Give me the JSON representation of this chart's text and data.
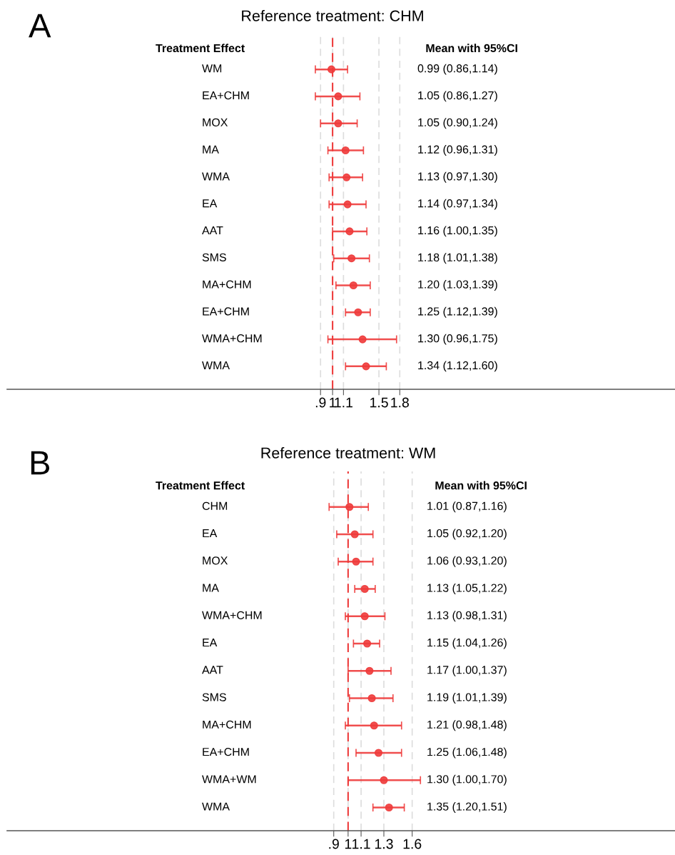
{
  "chart_data": [
    {
      "type": "scatter",
      "orientation": "horizontal",
      "title": "Reference treatment: CHM",
      "annotations": [
        "A",
        "Treatment Effect",
        "Mean with 95%CI",
        "0.99 (0.86,1.14)",
        "1.05 (0.86,1.27)",
        "1.05 (0.90,1.24)",
        "1.12 (0.96,1.31)",
        "1.13 (0.97,1.30)",
        "1.14 (0.97,1.34)",
        "1.16 (1.00,1.35)",
        "1.18 (1.01,1.38)",
        "1.20 (1.03,1.39)",
        "1.25 (1.12,1.39)",
        "1.30 (0.96,1.75)",
        "1.34 (1.12,1.60)"
      ],
      "categories": [
        "WM",
        "EA+CHM",
        "MOX",
        "MA",
        "WMA",
        "EA",
        "AAT",
        "SMS",
        "MA+CHM",
        "EA+CHM",
        "WMA+CHM",
        "WMA"
      ],
      "series": [
        {
          "color": "#ee3b3b",
          "values": [
            0.99,
            1.05,
            1.05,
            1.12,
            1.13,
            1.14,
            1.16,
            1.18,
            1.2,
            1.25,
            1.3,
            1.34
          ],
          "errors": [
            [
              0.86,
              1.14
            ],
            [
              0.86,
              1.27
            ],
            [
              0.9,
              1.24
            ],
            [
              0.96,
              1.31
            ],
            [
              0.97,
              1.3
            ],
            [
              0.97,
              1.34
            ],
            [
              1.0,
              1.35
            ],
            [
              1.01,
              1.38
            ],
            [
              1.03,
              1.39
            ],
            [
              1.12,
              1.39
            ],
            [
              0.96,
              1.75
            ],
            [
              1.12,
              1.6
            ]
          ]
        }
      ],
      "log": "x",
      "xlim": [
        0.058,
        20
      ],
      "xticks": [
        {
          "value": 0.9,
          "label": ".9"
        },
        1,
        1.1,
        1.5,
        1.8
      ],
      "grid": "x",
      "marker": "circle",
      "ref_lines": [
        {
          "axis": "x",
          "value": 1,
          "color": "#ee3b3b",
          "line_style": "dashed"
        }
      ]
    },
    {
      "type": "scatter",
      "orientation": "horizontal",
      "title": "Reference treatment: WM",
      "annotations": [
        "B",
        "Treatment Effect",
        "Mean with 95%CI",
        "1.01 (0.87,1.16)",
        "1.05 (0.92,1.20)",
        "1.06 (0.93,1.20)",
        "1.13 (1.05,1.22)",
        "1.13 (0.98,1.31)",
        "1.15 (1.04,1.26)",
        "1.17 (1.00,1.37)",
        "1.19 (1.01,1.39)",
        "1.21 (0.98,1.48)",
        "1.25 (1.06,1.48)",
        "1.30 (1.00,1.70)",
        "1.35 (1.20,1.51)"
      ],
      "categories": [
        "CHM",
        "EA",
        "MOX",
        "MA",
        "WMA+CHM",
        "EA",
        "AAT",
        "SMS",
        "MA+CHM",
        "EA+CHM",
        "WMA+WM",
        "WMA"
      ],
      "series": [
        {
          "color": "#ee3b3b",
          "values": [
            1.01,
            1.05,
            1.06,
            1.13,
            1.13,
            1.15,
            1.17,
            1.19,
            1.21,
            1.25,
            1.3,
            1.35
          ],
          "errors": [
            [
              0.87,
              1.16
            ],
            [
              0.92,
              1.2
            ],
            [
              0.93,
              1.2
            ],
            [
              1.05,
              1.22
            ],
            [
              0.98,
              1.31
            ],
            [
              1.04,
              1.26
            ],
            [
              1.0,
              1.37
            ],
            [
              1.01,
              1.39
            ],
            [
              0.98,
              1.48
            ],
            [
              1.06,
              1.48
            ],
            [
              1.0,
              1.7
            ],
            [
              1.2,
              1.51
            ]
          ]
        }
      ],
      "log": "x",
      "xlim": [
        0.082,
        11
      ],
      "xticks": [
        {
          "value": 0.9,
          "label": ".9"
        },
        1,
        1.1,
        1.3,
        1.6
      ],
      "grid": "x",
      "marker": "circle",
      "ref_lines": [
        {
          "axis": "x",
          "value": 1,
          "color": "#ee3b3b",
          "line_style": "dashed"
        }
      ]
    }
  ]
}
